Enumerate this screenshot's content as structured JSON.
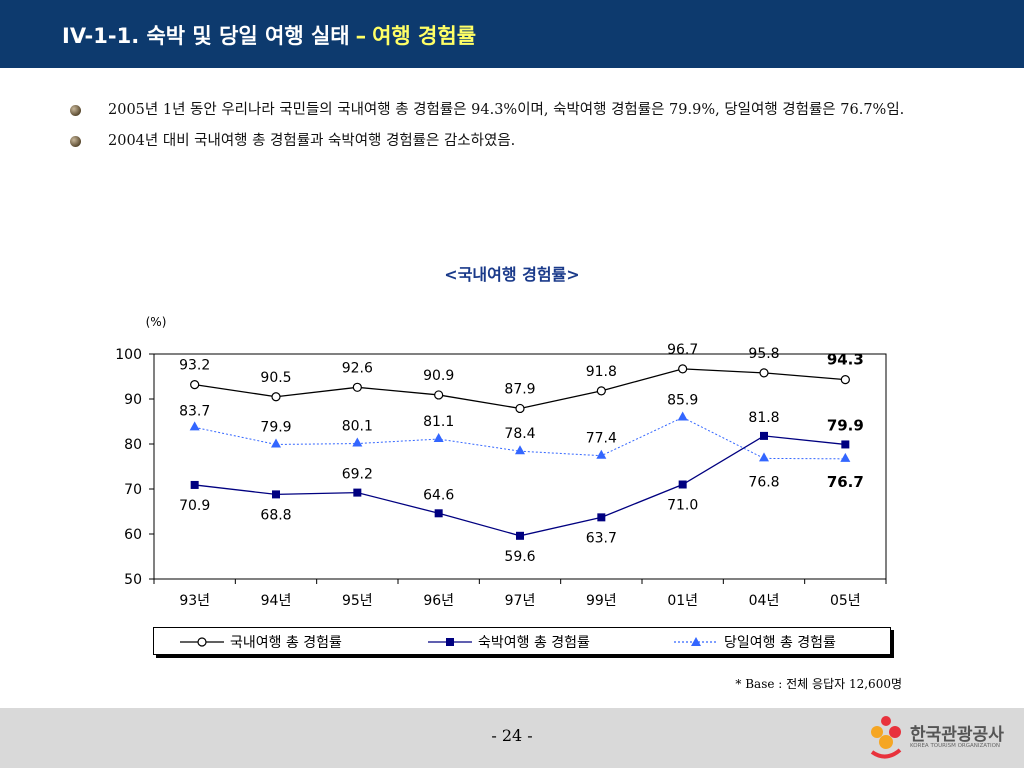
{
  "header": {
    "title": "IV-1-1. 숙박 및 당일 여행 실태",
    "dash": "–",
    "subtitle": "여행 경험률"
  },
  "bullets": [
    "2005년 1년 동안 우리나라 국민들의 국내여행 총 경험률은 94.3%이며, 숙박여행 경험률은 79.9%, 당일여행 경험률은 76.7%임.",
    "2004년 대비 국내여행 총 경험률과 숙박여행 경험률은 감소하였음."
  ],
  "chart_title": "<국내여행 경험률>",
  "chart_data": {
    "type": "line",
    "title": "<국내여행 경험률>",
    "ylabel": "(%)",
    "xlabel": "",
    "ylim": [
      50,
      100
    ],
    "yticks": [
      50,
      60,
      70,
      80,
      90,
      100
    ],
    "categories": [
      "93년",
      "94년",
      "95년",
      "96년",
      "97년",
      "99년",
      "01년",
      "04년",
      "05년"
    ],
    "series": [
      {
        "name": "국내여행 총 경험률",
        "values": [
          93.2,
          90.5,
          92.6,
          90.9,
          87.9,
          91.8,
          96.7,
          95.8,
          94.3
        ],
        "labels": [
          "93.2",
          "90.5",
          "92.6",
          "90.9",
          "87.9",
          "91.8",
          "96.7",
          "95.8",
          "94.3"
        ],
        "color": "#000000",
        "marker": "circle",
        "dash": false
      },
      {
        "name": "숙박여행 총 경험률",
        "values": [
          70.9,
          68.8,
          69.2,
          64.6,
          59.6,
          63.7,
          71.0,
          81.8,
          79.9
        ],
        "labels": [
          "70.9",
          "68.8",
          "69.2",
          "64.6",
          "59.6",
          "63.7",
          "71.0",
          "81.8",
          "79.9"
        ],
        "color": "#000080",
        "marker": "square",
        "dash": false
      },
      {
        "name": "당일여행 총 경험률",
        "values": [
          83.7,
          79.9,
          80.1,
          81.1,
          78.4,
          77.4,
          85.9,
          76.8,
          76.7
        ],
        "labels": [
          "83.7",
          "79.9",
          "80.1",
          "81.1",
          "78.4",
          "77.4",
          "85.9",
          "76.8",
          "76.7"
        ],
        "color": "#3366ff",
        "marker": "triangle",
        "dash": true
      }
    ],
    "legend": "bottom",
    "grid": false
  },
  "note": "* Base : 전체 응답자 12,600명",
  "page_number": "- 24 -",
  "logo": {
    "name": "한국관광공사",
    "sub": "KOREA TOURISM ORGANIZATION"
  },
  "colors": {
    "header_bg": "#0d3a6e",
    "header_accent": "#ffff66",
    "chart_title": "#1a3a8a",
    "footer_bg": "#d9d9d9"
  }
}
